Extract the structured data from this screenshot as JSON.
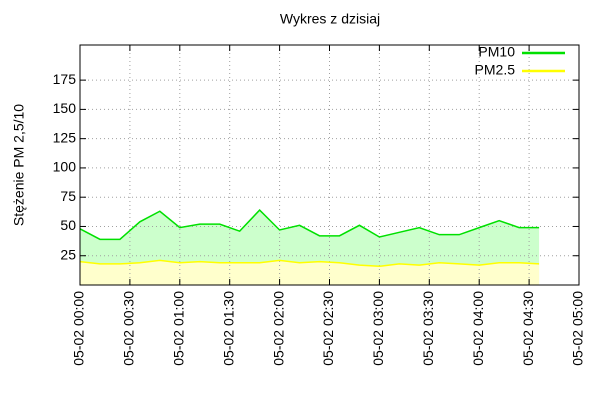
{
  "chart_data": {
    "type": "area",
    "title": "Wykres z dzisiaj",
    "y_label": "Stężenie PM 2,5/10",
    "x": [
      "05-02 00:00",
      "05-02 00:12",
      "05-02 00:24",
      "05-02 00:36",
      "05-02 00:48",
      "05-02 01:00",
      "05-02 01:12",
      "05-02 01:24",
      "05-02 01:36",
      "05-02 01:48",
      "05-02 02:00",
      "05-02 02:12",
      "05-02 02:24",
      "05-02 02:36",
      "05-02 02:48",
      "05-02 03:00",
      "05-02 03:12",
      "05-02 03:24",
      "05-02 03:36",
      "05-02 03:48",
      "05-02 04:00",
      "05-02 04:12",
      "05-02 04:24",
      "05-02 04:36"
    ],
    "series": [
      {
        "name": "PM10",
        "color": "#00e000",
        "fill": "#ccffcc",
        "values": [
          48,
          39,
          39,
          54,
          63,
          49,
          52,
          52,
          46,
          64,
          47,
          51,
          42,
          42,
          51,
          41,
          45,
          49,
          43,
          43,
          49,
          55,
          49,
          49
        ]
      },
      {
        "name": "PM2.5",
        "color": "#ffff00",
        "fill": "#ffffcc",
        "values": [
          20,
          18,
          18,
          19,
          21,
          19,
          20,
          19,
          19,
          19,
          21,
          19,
          20,
          19,
          17,
          16,
          18,
          17,
          19,
          18,
          17,
          19,
          19,
          18
        ]
      }
    ],
    "xlim": [
      "05-02 00:00",
      "05-02 05:00"
    ],
    "xticks": [
      "05-02 00:00",
      "05-02 00:30",
      "05-02 01:00",
      "05-02 01:30",
      "05-02 02:00",
      "05-02 02:30",
      "05-02 03:00",
      "05-02 03:30",
      "05-02 04:00",
      "05-02 04:30",
      "05-02 05:00"
    ],
    "ylim": [
      0,
      205
    ],
    "yticks": [
      25,
      50,
      75,
      100,
      125,
      150,
      175
    ],
    "grid": true,
    "legend": "top-right"
  }
}
